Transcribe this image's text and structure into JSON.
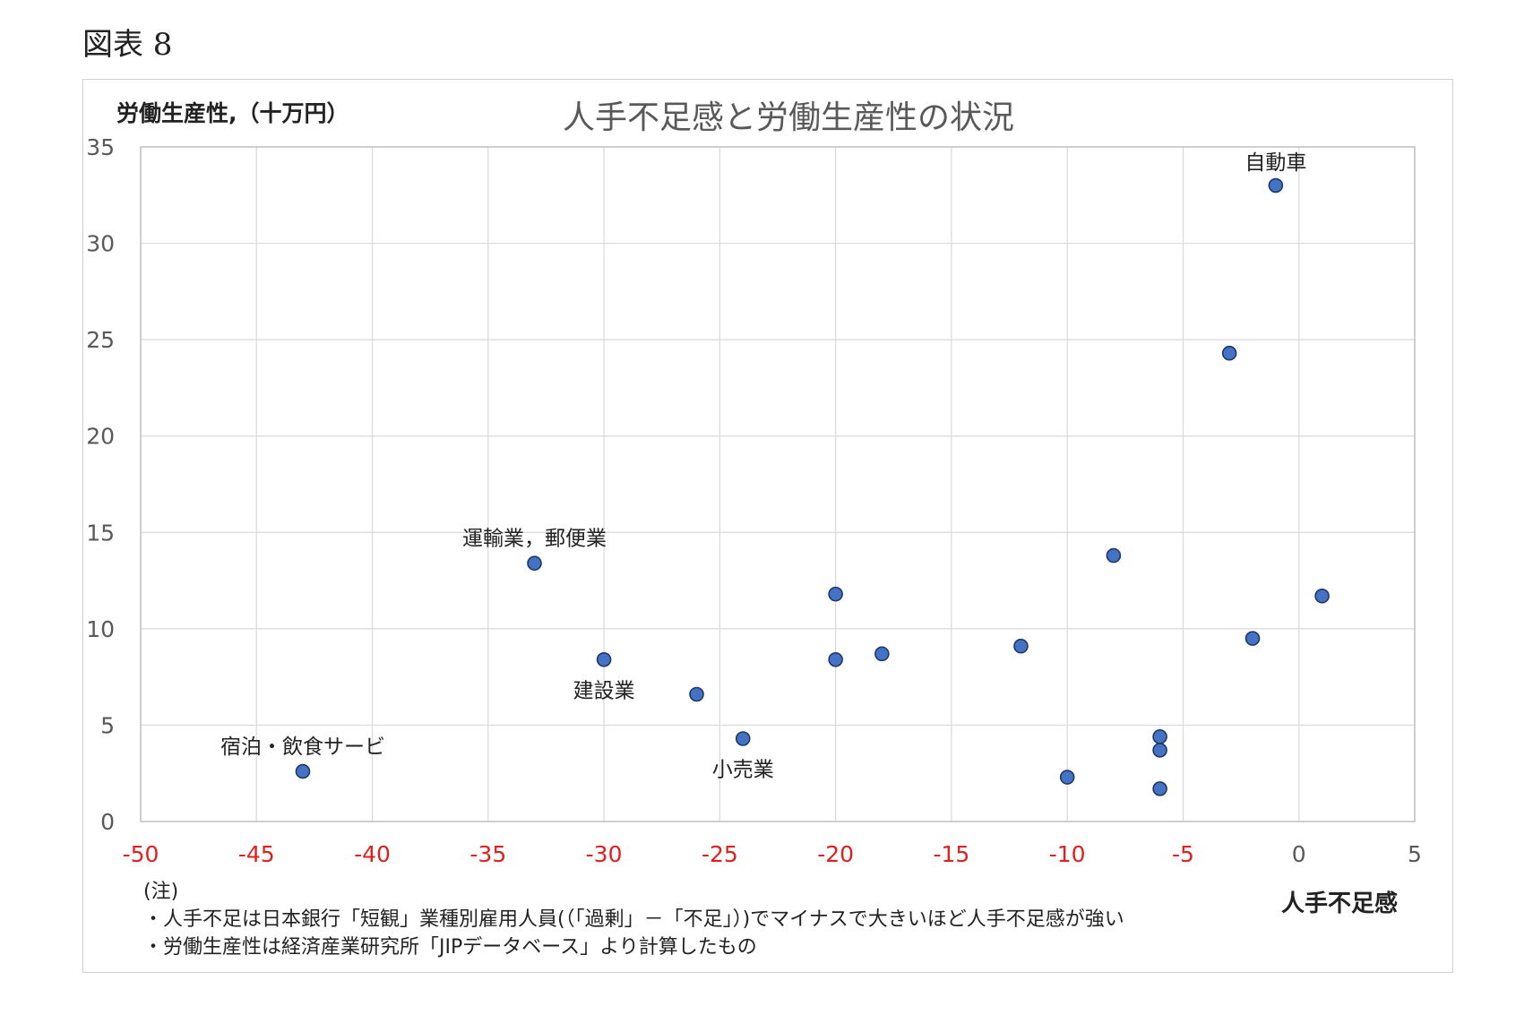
{
  "figure_label": "図表 8",
  "chart_data": {
    "type": "scatter",
    "title": "人手不足感と労働生産性の状況",
    "ylabel": "労働生産性,（十万円）",
    "xlabel": "人手不足感",
    "xlim": [
      -50,
      5
    ],
    "ylim": [
      0,
      35
    ],
    "xticks": [
      -50,
      -45,
      -40,
      -35,
      -30,
      -25,
      -20,
      -15,
      -10,
      -5,
      0,
      5
    ],
    "yticks": [
      0,
      5,
      10,
      15,
      20,
      25,
      30,
      35
    ],
    "grid": true,
    "negative_tick_color": "#e02020",
    "positive_tick_color": "#595959",
    "point_color": "#4472c4",
    "point_stroke": "#1f3864",
    "points": [
      {
        "x": -43,
        "y": 2.6,
        "label": "宿泊・飲食サービ"
      },
      {
        "x": -33,
        "y": 13.4,
        "label": "運輸業，郵便業"
      },
      {
        "x": -30,
        "y": 8.4,
        "label": "建設業"
      },
      {
        "x": -26,
        "y": 6.6,
        "label": ""
      },
      {
        "x": -24,
        "y": 4.3,
        "label": "小売業"
      },
      {
        "x": -20,
        "y": 11.8,
        "label": ""
      },
      {
        "x": -20,
        "y": 8.4,
        "label": ""
      },
      {
        "x": -18,
        "y": 8.7,
        "label": ""
      },
      {
        "x": -12,
        "y": 9.1,
        "label": ""
      },
      {
        "x": -10,
        "y": 2.3,
        "label": ""
      },
      {
        "x": -8,
        "y": 13.8,
        "label": ""
      },
      {
        "x": -6,
        "y": 4.4,
        "label": ""
      },
      {
        "x": -6,
        "y": 3.7,
        "label": ""
      },
      {
        "x": -6,
        "y": 1.7,
        "label": ""
      },
      {
        "x": -3,
        "y": 24.3,
        "label": ""
      },
      {
        "x": -2,
        "y": 9.5,
        "label": ""
      },
      {
        "x": -1,
        "y": 33.0,
        "label": "自動車"
      },
      {
        "x": 1,
        "y": 11.7,
        "label": ""
      }
    ]
  },
  "notes": [
    "(注)",
    "・人手不足は日本銀行「短観」業種別雇用人員(（「過剰」－「不足」）)でマイナスで大きいほど人手不足感が強い",
    "・労働生産性は経済産業研究所「JIPデータベース」より計算したもの"
  ]
}
